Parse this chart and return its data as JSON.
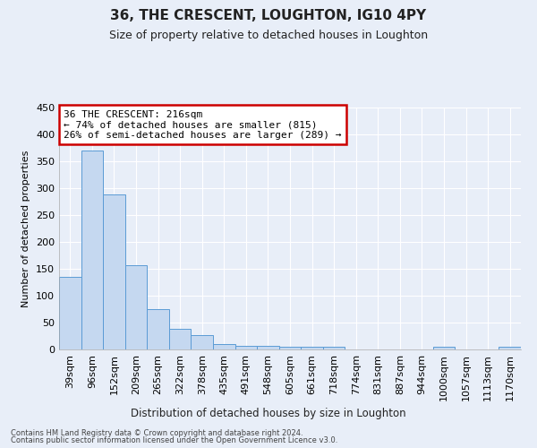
{
  "title": "36, THE CRESCENT, LOUGHTON, IG10 4PY",
  "subtitle": "Size of property relative to detached houses in Loughton",
  "xlabel": "Distribution of detached houses by size in Loughton",
  "ylabel": "Number of detached properties",
  "categories": [
    "39sqm",
    "96sqm",
    "152sqm",
    "209sqm",
    "265sqm",
    "322sqm",
    "378sqm",
    "435sqm",
    "491sqm",
    "548sqm",
    "605sqm",
    "661sqm",
    "718sqm",
    "774sqm",
    "831sqm",
    "887sqm",
    "944sqm",
    "1000sqm",
    "1057sqm",
    "1113sqm",
    "1170sqm"
  ],
  "values": [
    135,
    370,
    288,
    157,
    75,
    38,
    27,
    10,
    7,
    6,
    5,
    5,
    5,
    0,
    0,
    0,
    0,
    5,
    0,
    0,
    5
  ],
  "bar_color": "#c5d8f0",
  "bar_edge_color": "#5b9bd5",
  "marker_label": "36 THE CRESCENT: 216sqm",
  "annotation_line1": "← 74% of detached houses are smaller (815)",
  "annotation_line2": "26% of semi-detached houses are larger (289) →",
  "annotation_box_color": "#ffffff",
  "annotation_box_edge": "#cc0000",
  "background_color": "#e8eef8",
  "grid_color": "#ffffff",
  "ylim": [
    0,
    450
  ],
  "yticks": [
    0,
    50,
    100,
    150,
    200,
    250,
    300,
    350,
    400,
    450
  ],
  "footer_line1": "Contains HM Land Registry data © Crown copyright and database right 2024.",
  "footer_line2": "Contains public sector information licensed under the Open Government Licence v3.0."
}
